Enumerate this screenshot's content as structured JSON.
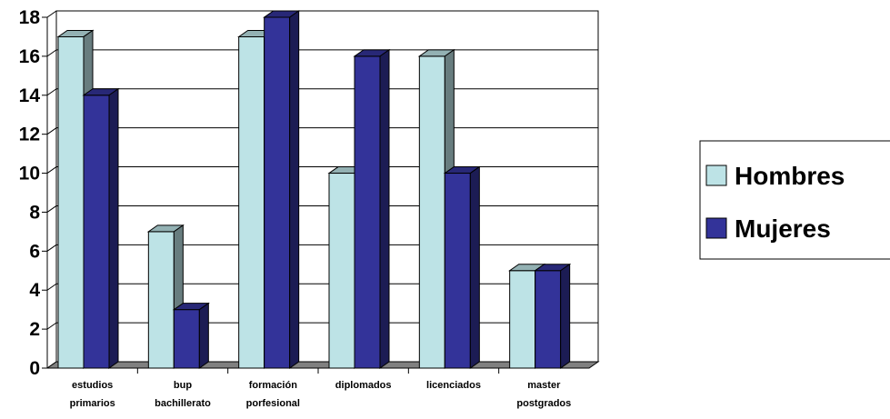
{
  "chart_data": {
    "type": "bar",
    "categories": [
      [
        "estudios",
        "primarios"
      ],
      [
        "bup",
        "bachillerato"
      ],
      [
        "formación",
        "porfesional"
      ],
      [
        "diplomados"
      ],
      [
        "licenciados"
      ],
      [
        "master",
        "postgrados"
      ]
    ],
    "series": [
      {
        "name": "Hombres",
        "values": [
          17,
          7,
          17,
          10,
          16,
          5
        ],
        "color": "#bde3e6"
      },
      {
        "name": "Mujeres",
        "values": [
          14,
          3,
          18,
          16,
          10,
          5
        ],
        "color": "#333399"
      }
    ],
    "ylim": [
      0,
      18
    ],
    "yticks": [
      0,
      2,
      4,
      6,
      8,
      10,
      12,
      14,
      16,
      18
    ],
    "grid": true,
    "legend_position": "right",
    "style": "3d-clustered-column"
  }
}
